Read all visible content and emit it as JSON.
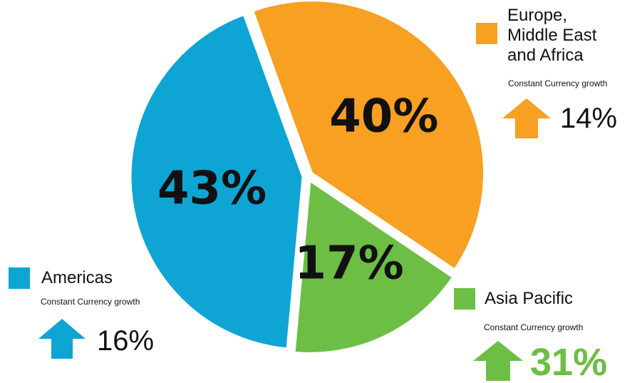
{
  "chart_data": {
    "type": "pie",
    "slices": [
      {
        "label": "Europe, Middle East and Africa",
        "value": 40,
        "percent_label": "40%",
        "color": "#F7A021"
      },
      {
        "label": "Asia Pacific",
        "value": 17,
        "percent_label": "17%",
        "color": "#6CBE45"
      },
      {
        "label": "Americas",
        "value": 43,
        "percent_label": "43%",
        "color": "#0EA5D5"
      }
    ]
  },
  "legend": {
    "emea": {
      "lines": [
        "Europe,",
        "Middle East",
        "and Africa"
      ],
      "subtitle": "Constant Currency growth",
      "growth": "14%",
      "color": "#F7A021"
    },
    "apac": {
      "name": "Asia Pacific",
      "subtitle": "Constant Currency growth",
      "growth": "31%",
      "color": "#6CBE45"
    },
    "americas": {
      "name": "Americas",
      "subtitle": "Constant Currency growth",
      "growth": "16%",
      "color": "#0EA5D5"
    }
  },
  "icons": {
    "growth_arrow": "up-arrow-icon"
  }
}
